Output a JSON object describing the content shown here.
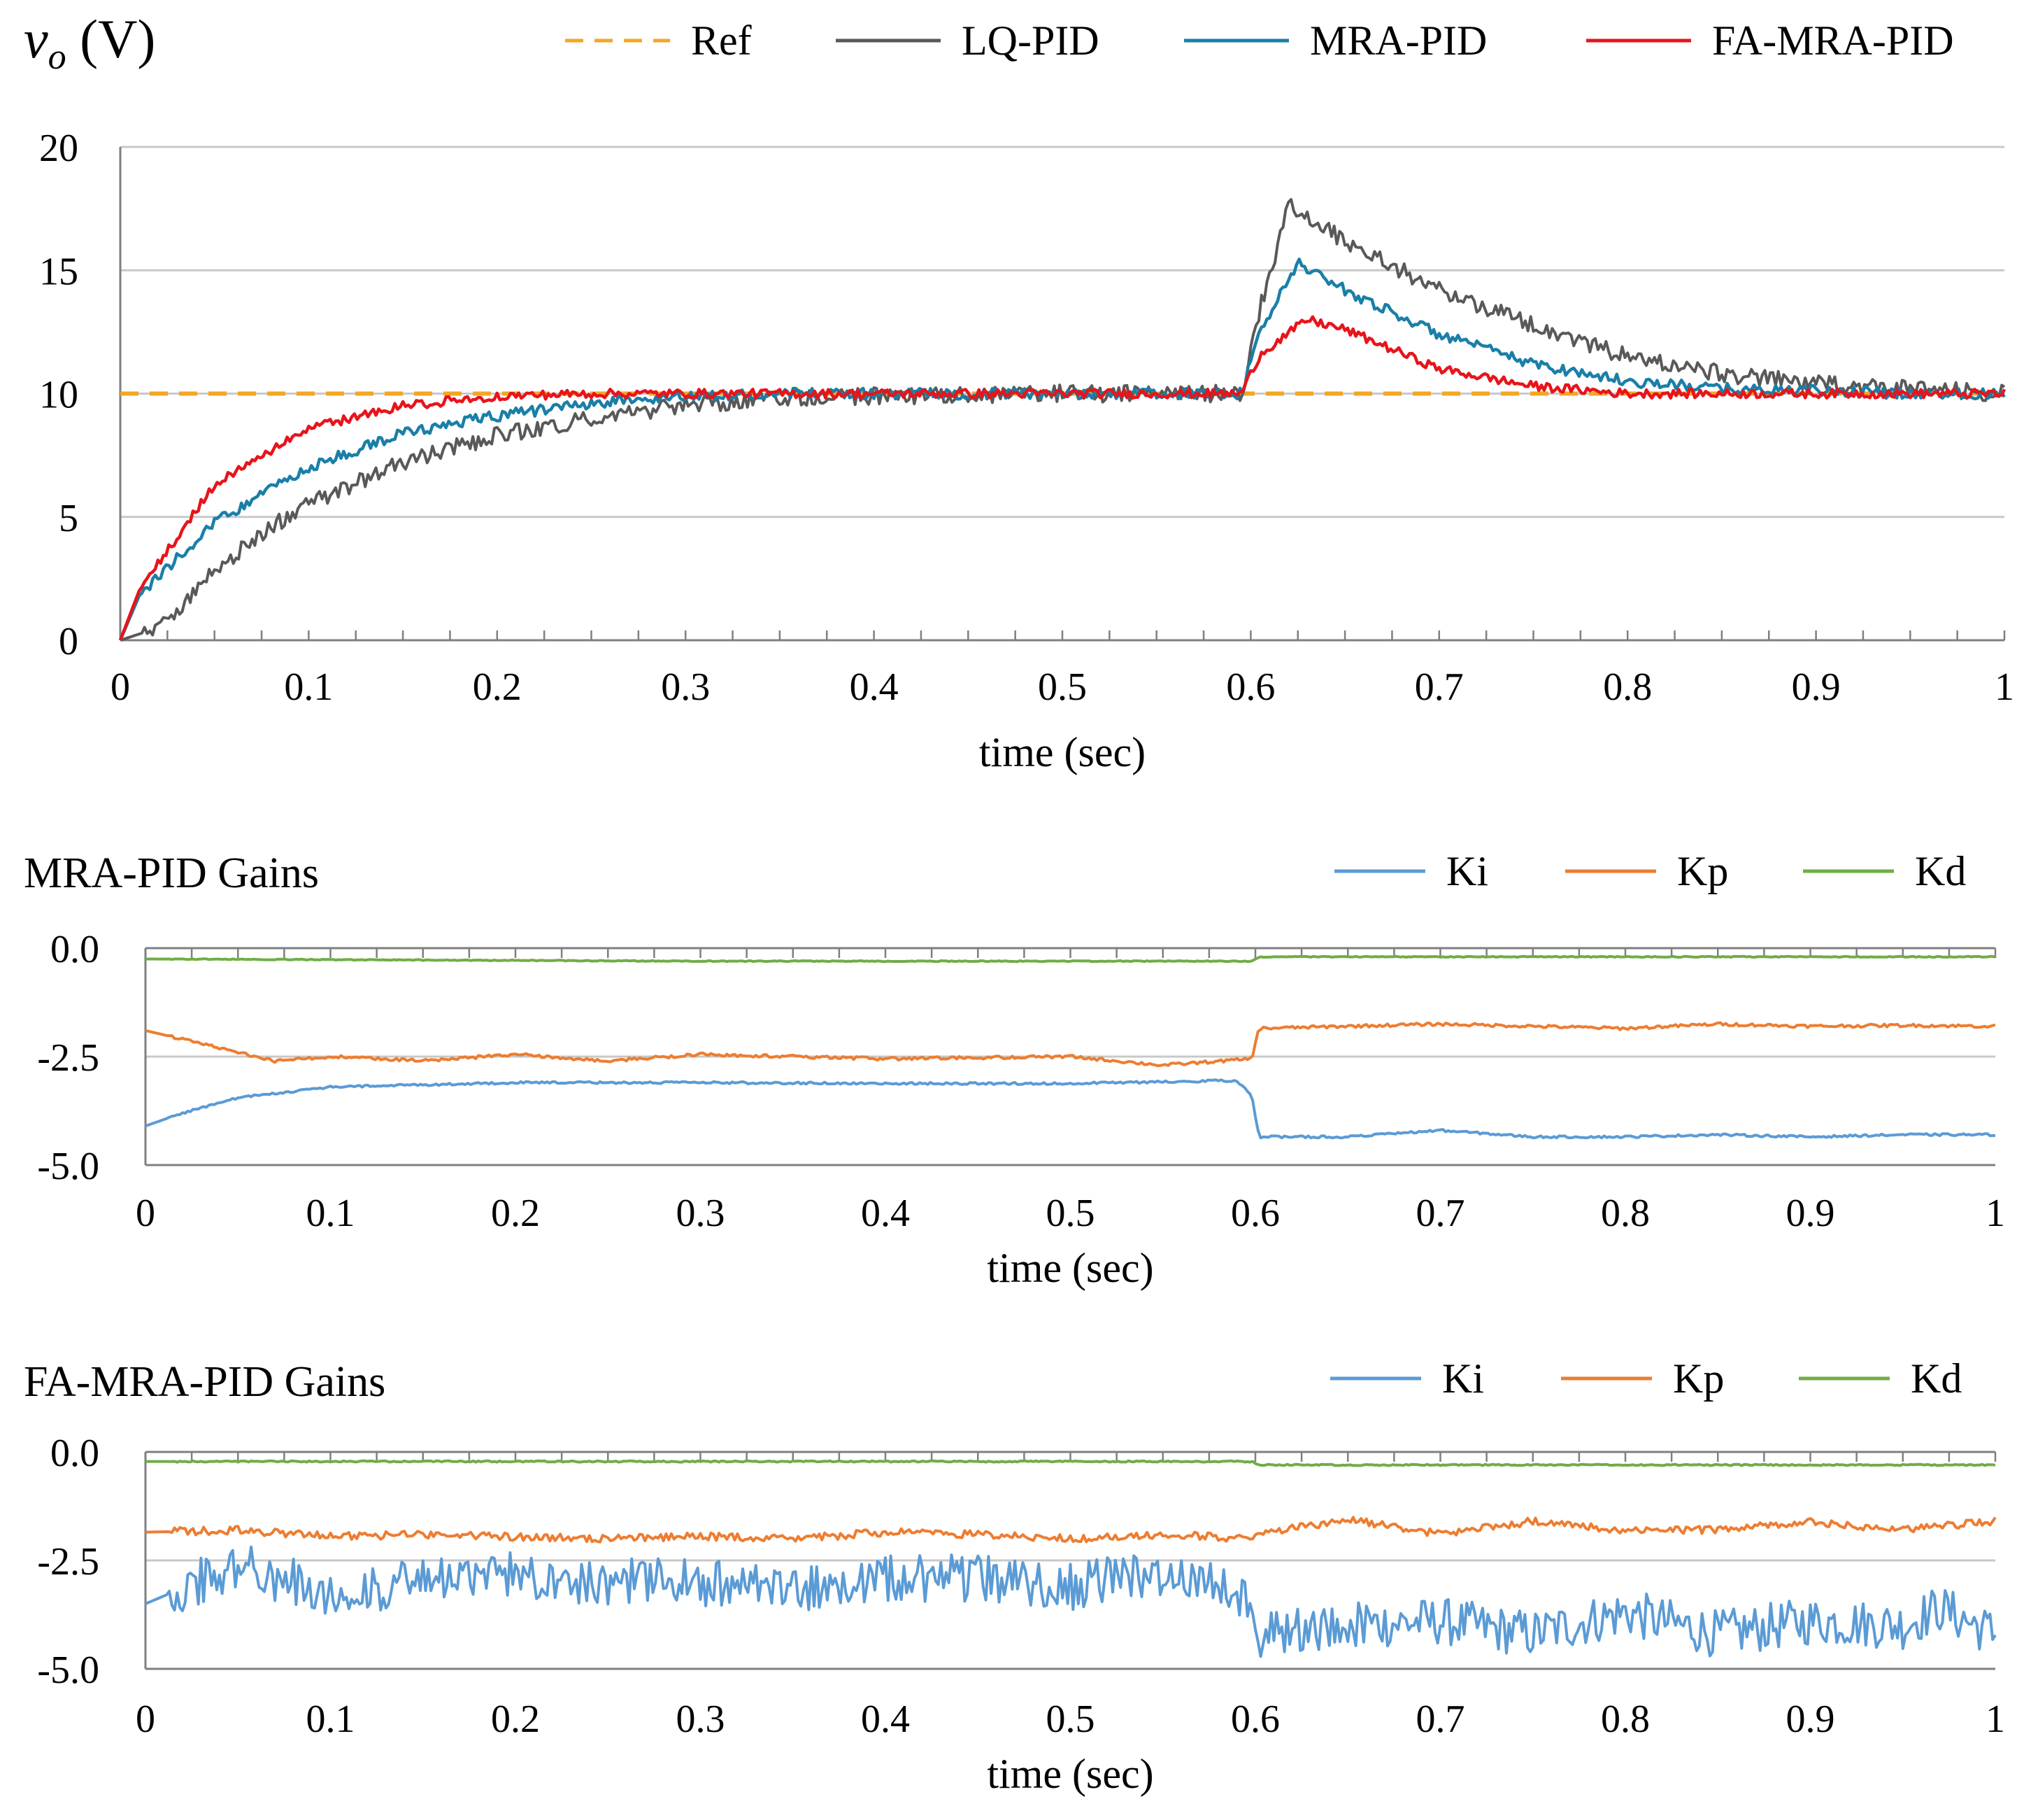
{
  "chart_data": [
    {
      "type": "line",
      "ylabel_main": "v",
      "ylabel_sub": "o",
      "ylabel_unit": " (V)",
      "xlabel": "time (sec)",
      "xlim": [
        0,
        1
      ],
      "ylim": [
        0,
        20
      ],
      "xticks": [
        "0",
        "0.1",
        "0.2",
        "0.3",
        "0.4",
        "0.5",
        "0.6",
        "0.7",
        "0.8",
        "0.9",
        "1"
      ],
      "yticks": [
        "0",
        "5",
        "10",
        "15",
        "20"
      ],
      "grid": true,
      "legend_position": "top",
      "series": [
        {
          "name": "Ref",
          "color": "#F5A623",
          "dashed": true,
          "x": [
            0,
            1
          ],
          "y": [
            10,
            10
          ]
        },
        {
          "name": "LQ-PID",
          "color": "#595959",
          "x": [
            0,
            0.02,
            0.05,
            0.08,
            0.1,
            0.15,
            0.2,
            0.25,
            0.3,
            0.35,
            0.4,
            0.5,
            0.595,
            0.605,
            0.62,
            0.65,
            0.7,
            0.75,
            0.8,
            0.85,
            0.9,
            0.95,
            1.0
          ],
          "y": [
            0,
            0.5,
            2.8,
            4.6,
            5.5,
            7.2,
            8.3,
            9.0,
            9.5,
            9.8,
            9.9,
            10.0,
            10.0,
            13.5,
            17.6,
            16.2,
            14.2,
            12.8,
            11.5,
            10.8,
            10.4,
            10.2,
            10.0
          ]
        },
        {
          "name": "MRA-PID",
          "color": "#1A7FA8",
          "x": [
            0,
            0.01,
            0.05,
            0.1,
            0.15,
            0.2,
            0.25,
            0.3,
            0.35,
            0.4,
            0.5,
            0.595,
            0.605,
            0.625,
            0.65,
            0.7,
            0.75,
            0.8,
            0.85,
            0.9,
            0.95,
            1.0
          ],
          "y": [
            0,
            1.8,
            4.8,
            7.0,
            8.4,
            9.1,
            9.6,
            9.9,
            10.0,
            10.0,
            10.0,
            10.0,
            12.5,
            15.3,
            14.2,
            12.4,
            11.2,
            10.5,
            10.2,
            10.1,
            10.0,
            10.0
          ]
        },
        {
          "name": "FA-MRA-PID",
          "color": "#E8141B",
          "x": [
            0,
            0.01,
            0.05,
            0.1,
            0.15,
            0.2,
            0.25,
            0.3,
            0.4,
            0.5,
            0.595,
            0.605,
            0.63,
            0.65,
            0.7,
            0.75,
            0.8,
            0.85,
            0.9,
            0.95,
            1.0
          ],
          "y": [
            0,
            2.0,
            6.3,
            8.6,
            9.5,
            9.9,
            10.0,
            10.0,
            10.0,
            10.0,
            10.0,
            11.6,
            13.0,
            12.6,
            11.0,
            10.3,
            10.0,
            10.0,
            10.0,
            10.0,
            10.0
          ]
        }
      ]
    },
    {
      "type": "line",
      "title": "MRA-PID  Gains",
      "xlabel": "time (sec)",
      "xlim": [
        0,
        1
      ],
      "ylim": [
        -5.0,
        0.0
      ],
      "xticks": [
        "0",
        "0.1",
        "0.2",
        "0.3",
        "0.4",
        "0.5",
        "0.6",
        "0.7",
        "0.8",
        "0.9",
        "1"
      ],
      "yticks": [
        "0.0",
        "-2.5",
        "-5.0"
      ],
      "grid": true,
      "legend_position": "top-right",
      "series": [
        {
          "name": "Ki",
          "color": "#5B9BD5",
          "x": [
            0,
            0.02,
            0.05,
            0.08,
            0.1,
            0.15,
            0.2,
            0.3,
            0.4,
            0.5,
            0.59,
            0.598,
            0.602,
            0.65,
            0.7,
            0.75,
            0.8,
            0.85,
            0.9,
            0.95,
            1.0
          ],
          "y": [
            -4.1,
            -3.8,
            -3.45,
            -3.3,
            -3.2,
            -3.15,
            -3.1,
            -3.1,
            -3.12,
            -3.12,
            -3.05,
            -3.4,
            -4.35,
            -4.35,
            -4.2,
            -4.35,
            -4.35,
            -4.3,
            -4.35,
            -4.3,
            -4.3
          ]
        },
        {
          "name": "Kp",
          "color": "#ED7D31",
          "x": [
            0,
            0.03,
            0.07,
            0.1,
            0.15,
            0.2,
            0.25,
            0.3,
            0.4,
            0.5,
            0.55,
            0.598,
            0.602,
            0.65,
            0.7,
            0.75,
            0.8,
            0.85,
            0.9,
            0.95,
            1.0
          ],
          "y": [
            -1.9,
            -2.2,
            -2.6,
            -2.5,
            -2.6,
            -2.45,
            -2.6,
            -2.45,
            -2.55,
            -2.5,
            -2.7,
            -2.55,
            -1.85,
            -1.8,
            -1.75,
            -1.8,
            -1.85,
            -1.75,
            -1.8,
            -1.78,
            -1.8
          ]
        },
        {
          "name": "Kd",
          "color": "#70AD47",
          "x": [
            0,
            0.3,
            0.598,
            0.602,
            1.0
          ],
          "y": [
            -0.25,
            -0.3,
            -0.3,
            -0.2,
            -0.2
          ]
        }
      ]
    },
    {
      "type": "line",
      "title": "FA-MRA-PID  Gains",
      "xlabel": "time (sec)",
      "xlim": [
        0,
        1
      ],
      "ylim": [
        -5.0,
        0.0
      ],
      "xticks": [
        "0",
        "0.1",
        "0.2",
        "0.3",
        "0.4",
        "0.5",
        "0.6",
        "0.7",
        "0.8",
        "0.9",
        "1"
      ],
      "yticks": [
        "0.0",
        "-2.5",
        "-5.0"
      ],
      "grid": true,
      "legend_position": "top-right",
      "series": [
        {
          "name": "Ki",
          "color": "#5B9BD5",
          "x": [
            0,
            0.05,
            0.1,
            0.15,
            0.2,
            0.25,
            0.3,
            0.35,
            0.4,
            0.45,
            0.5,
            0.55,
            0.598,
            0.602,
            0.65,
            0.7,
            0.75,
            0.8,
            0.85,
            0.9,
            0.95,
            0.97,
            1.0
          ],
          "y": [
            -3.5,
            -2.6,
            -3.3,
            -3.0,
            -2.8,
            -3.0,
            -3.0,
            -3.2,
            -2.9,
            -2.9,
            -3.1,
            -2.8,
            -3.3,
            -4.2,
            -4.0,
            -3.9,
            -4.2,
            -3.7,
            -4.2,
            -3.9,
            -4.0,
            -3.6,
            -4.2
          ]
        },
        {
          "name": "Kp",
          "color": "#ED7D31",
          "x": [
            0,
            0.05,
            0.1,
            0.15,
            0.2,
            0.25,
            0.3,
            0.35,
            0.4,
            0.45,
            0.5,
            0.55,
            0.598,
            0.602,
            0.65,
            0.7,
            0.75,
            0.8,
            0.85,
            0.9,
            0.95,
            1.0
          ],
          "y": [
            -1.85,
            -1.8,
            -1.95,
            -1.9,
            -1.95,
            -2.0,
            -1.95,
            -2.0,
            -1.85,
            -1.9,
            -2.0,
            -1.9,
            -2.0,
            -1.9,
            -1.55,
            -1.9,
            -1.6,
            -1.8,
            -1.8,
            -1.6,
            -1.8,
            -1.6
          ]
        },
        {
          "name": "Kd",
          "color": "#70AD47",
          "x": [
            0,
            0.598,
            0.602,
            1.0
          ],
          "y": [
            -0.22,
            -0.22,
            -0.3,
            -0.3
          ]
        }
      ]
    }
  ]
}
